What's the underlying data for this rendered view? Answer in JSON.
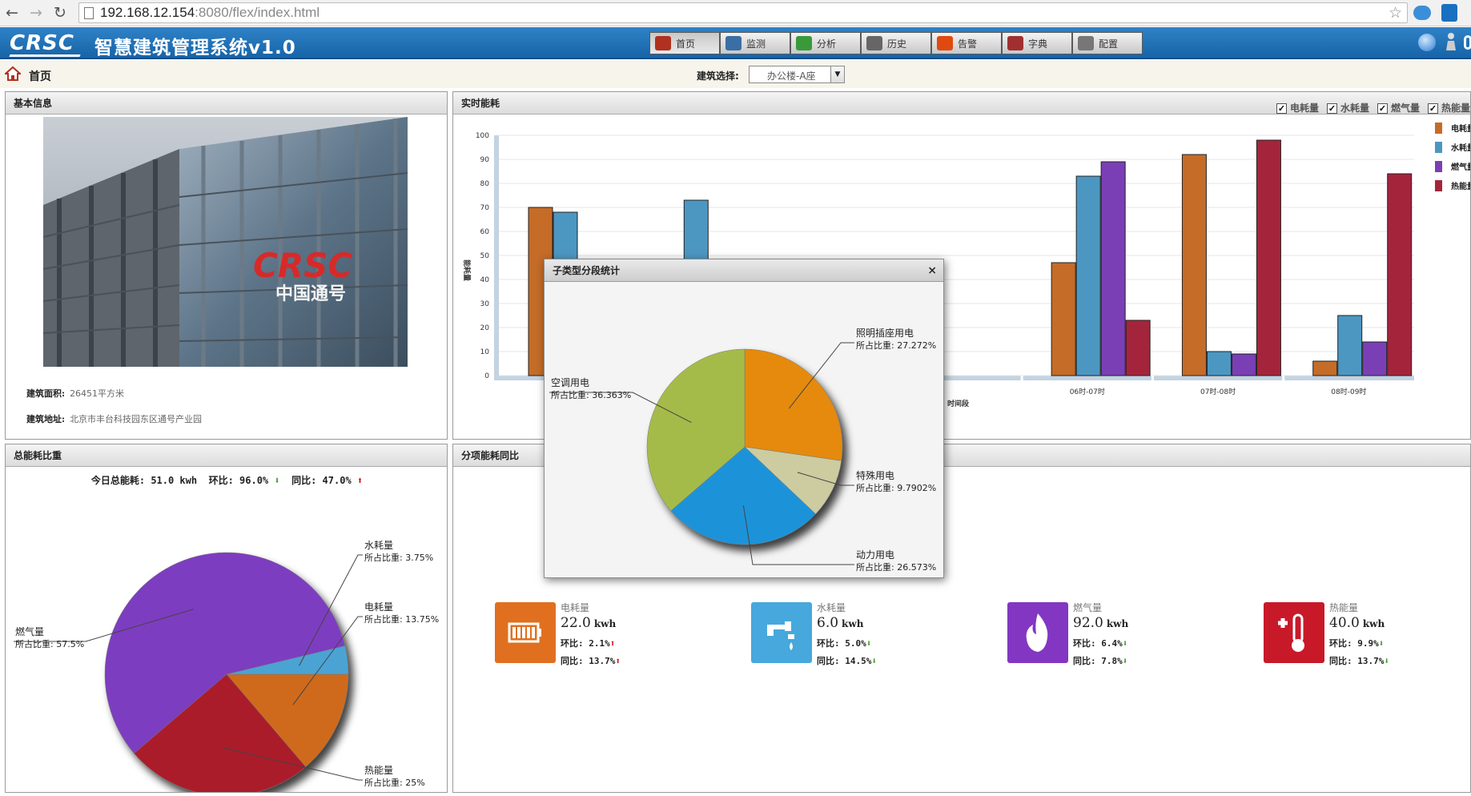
{
  "browser": {
    "url_host": "192.168.12.154",
    "url_rest": ":8080/flex/index.html"
  },
  "app": {
    "logo": "CRSC",
    "title": "智慧建筑管理系统v1.0",
    "nav": [
      {
        "label": "首页",
        "icon": "home-icon",
        "active": true
      },
      {
        "label": "监测",
        "icon": "monitor-icon"
      },
      {
        "label": "分析",
        "icon": "analysis-icon"
      },
      {
        "label": "历史",
        "icon": "history-icon"
      },
      {
        "label": "告警",
        "icon": "alarm-icon"
      },
      {
        "label": "字典",
        "icon": "dictionary-icon"
      },
      {
        "label": "配置",
        "icon": "config-icon"
      }
    ]
  },
  "breadcrumb": {
    "label": "首页"
  },
  "building_select": {
    "label": "建筑选择:",
    "value": "办公楼-A座"
  },
  "basic_info": {
    "title": "基本信息",
    "sign_logo": "CRSC",
    "sign_text": "中国通号",
    "area_label": "建筑面积:",
    "area_value": "26451平方米",
    "address_label": "建筑地址:",
    "address_value": "北京市丰台科技园东区通号产业园"
  },
  "realtime": {
    "title": "实时能耗",
    "checks": [
      "电耗量",
      "水耗量",
      "燃气量",
      "热能量"
    ],
    "legend": [
      "电耗量",
      "水耗量",
      "燃气量",
      "热能量"
    ],
    "colors": [
      "#c46c28",
      "#4c97c1",
      "#7b3fb5",
      "#a4253b"
    ]
  },
  "chart_data": [
    {
      "type": "bar",
      "title": "实时能耗",
      "categories": [
        "",
        "",
        "",
        "",
        "06时-07时",
        "07时-08时",
        "08时-09时"
      ],
      "series": [
        {
          "name": "电耗量",
          "values": [
            70,
            null,
            null,
            null,
            47,
            92,
            6
          ]
        },
        {
          "name": "水耗量",
          "values": [
            68,
            73,
            null,
            null,
            83,
            10,
            25
          ]
        },
        {
          "name": "燃气量",
          "values": [
            null,
            null,
            null,
            null,
            89,
            9,
            14
          ]
        },
        {
          "name": "热能量",
          "values": [
            null,
            null,
            null,
            null,
            23,
            98,
            84
          ]
        }
      ],
      "yticks": [
        0,
        10,
        20,
        30,
        40,
        50,
        60,
        70,
        80,
        90,
        100
      ],
      "ylim": [
        0,
        100
      ],
      "xlabel": "时间段",
      "ylabel": "能耗量"
    },
    {
      "type": "pie",
      "title": "子类型分段统计",
      "slices": [
        {
          "label": "照明插座用电",
          "pct_text": "所占比重: 27.272%",
          "value": 27.272,
          "color": "#e58a0a"
        },
        {
          "label": "特殊用电",
          "pct_text": "所占比重: 9.7902%",
          "value": 9.7902,
          "color": "#cdcba0"
        },
        {
          "label": "动力用电",
          "pct_text": "所占比重: 26.573%",
          "value": 26.573,
          "color": "#1f93d9"
        },
        {
          "label": "空调用电",
          "pct_text": "所占比重: 36.363%",
          "value": 36.363,
          "color": "#a5bb48"
        }
      ]
    },
    {
      "type": "pie",
      "title": "总能耗比重",
      "slices": [
        {
          "label": "电耗量",
          "pct_text": "所占比重: 13.75%",
          "value": 13.75,
          "color": "#cf6a1b"
        },
        {
          "label": "热能量",
          "pct_text": "所占比重: 25%",
          "value": 25,
          "color": "#ab1a2a"
        },
        {
          "label": "燃气量",
          "pct_text": "所占比重: 57.5%",
          "value": 57.5,
          "color": "#7d3ec0"
        },
        {
          "label": "水耗量",
          "pct_text": "所占比重: 3.75%",
          "value": 3.75,
          "color": "#4ba3d4"
        }
      ]
    }
  ],
  "total": {
    "title": "总能耗比重",
    "today_label": "今日总能耗:",
    "today_value": "51.0 kwh",
    "mom_label": "环比:",
    "mom_value": "96.0%",
    "yoy_label": "同比:",
    "yoy_value": "47.0%"
  },
  "subtype": {
    "title": "分项能耗同比",
    "dialog_title": "子类型分段统计",
    "cards": [
      {
        "label": "电耗量",
        "value": "22.0",
        "unit": "kwh",
        "mom_label": "环比:",
        "mom": "2.1%",
        "yoy_label": "同比:",
        "yoy": "13.7%",
        "color": "#e0701f",
        "icon": "battery-icon",
        "mom_dir": "up",
        "yoy_dir": "up"
      },
      {
        "label": "水耗量",
        "value": "6.0",
        "unit": "kwh",
        "mom_label": "环比:",
        "mom": "5.0%",
        "yoy_label": "同比:",
        "yoy": "14.5%",
        "color": "#46a8dc",
        "icon": "faucet-icon",
        "mom_dir": "down",
        "yoy_dir": "down"
      },
      {
        "label": "燃气量",
        "value": "92.0",
        "unit": "kwh",
        "mom_label": "环比:",
        "mom": "6.4%",
        "yoy_label": "同比:",
        "yoy": "7.8%",
        "color": "#8336c2",
        "icon": "flame-icon",
        "mom_dir": "down",
        "yoy_dir": "down"
      },
      {
        "label": "热能量",
        "value": "40.0",
        "unit": "kwh",
        "mom_label": "环比:",
        "mom": "9.9%",
        "yoy_label": "同比:",
        "yoy": "13.7%",
        "color": "#c81929",
        "icon": "thermometer-icon",
        "mom_dir": "down",
        "yoy_dir": "down"
      }
    ]
  }
}
